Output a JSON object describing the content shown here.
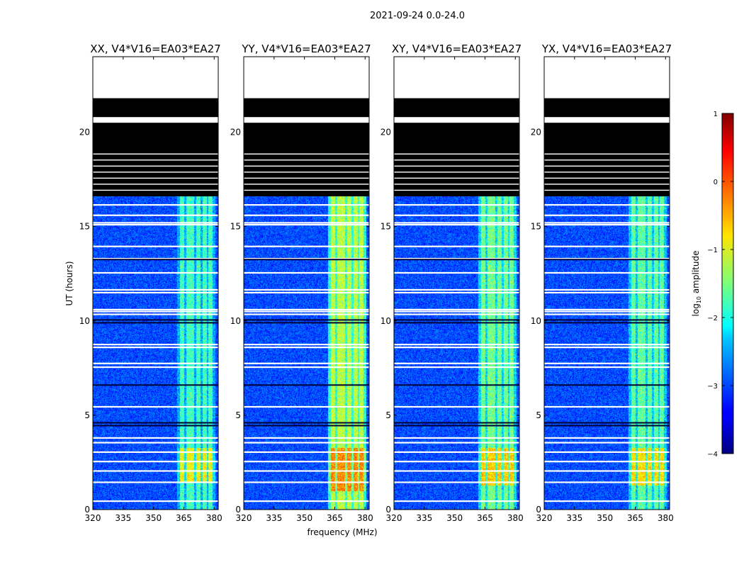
{
  "figure": {
    "suptitle": "2021-09-24 0.0-24.0",
    "xlabel": "frequency (MHz)",
    "ylabel": "UT (hours)"
  },
  "chart_data": {
    "type": "heatmap",
    "title": "2021-09-24 0.0-24.0",
    "xlabel": "frequency (MHz)",
    "ylabel": "UT (hours)",
    "xlim": [
      320,
      382
    ],
    "ylim": [
      0,
      24
    ],
    "xticks": [
      320,
      335,
      350,
      365,
      380
    ],
    "yticks": [
      0,
      5,
      10,
      15,
      20
    ],
    "panels": [
      {
        "title": "XX, V4*V16=EA03*EA27",
        "band_boost": 0.0,
        "bright_start": 1.5
      },
      {
        "title": "YY, V4*V16=EA03*EA27",
        "band_boost": 0.12,
        "bright_start": 1.0
      },
      {
        "title": "XY, V4*V16=EA03*EA27",
        "band_boost": 0.05,
        "bright_start": 1.3
      },
      {
        "title": "YX, V4*V16=EA03*EA27",
        "band_boost": 0.03,
        "bright_start": 1.3
      }
    ],
    "rfi_band_mhz": [
      361.5,
      380.5
    ],
    "rfi_channels_mhz": [
      364,
      367,
      369,
      372,
      375,
      378
    ],
    "flagged_full_hours": [
      [
        16.6,
        24.0
      ]
    ],
    "no_data_hours": [
      [
        20.5,
        20.8
      ],
      [
        21.8,
        24.0
      ]
    ],
    "white_flag_lines_hours": [
      0.45,
      1.45,
      2.05,
      2.55,
      3.05,
      3.55,
      3.8,
      5.45,
      7.55,
      7.75,
      8.6,
      8.75,
      10.35,
      10.5,
      10.6,
      11.5,
      11.65,
      12.55,
      13.3,
      13.95,
      15.1,
      15.2,
      15.6,
      16.15
    ],
    "dark_lines_hours": [
      4.45,
      4.6,
      9.9,
      10.05,
      13.25,
      6.6
    ],
    "colorbar": {
      "label": "log₁₀ amplitude",
      "label_base": "log",
      "label_sub": "10",
      "label_rest": " amplitude",
      "vmin": -4,
      "vmax": 1,
      "ticks": [
        1,
        0,
        -1,
        -2,
        -3,
        -4
      ],
      "tick_labels": [
        "1",
        "0",
        "−1",
        "−2",
        "−3",
        "−4"
      ],
      "colormap": "jet"
    },
    "background_log_amplitude": -3.0
  }
}
